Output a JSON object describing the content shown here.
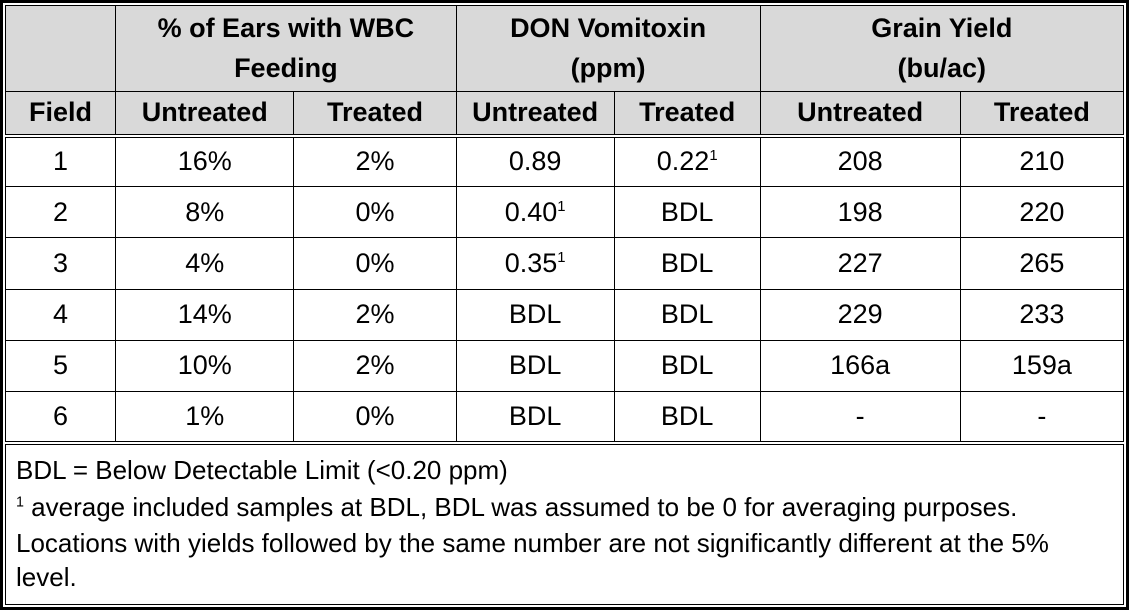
{
  "chart_data": {
    "type": "table",
    "title": "",
    "column_groups": [
      "",
      "% of Ears with WBC Feeding",
      "DON Vomitoxin (ppm)",
      "Grain Yield (bu/ac)"
    ],
    "columns": [
      "Field",
      "Untreated",
      "Treated",
      "Untreated",
      "Treated",
      "Untreated",
      "Treated"
    ],
    "rows": [
      [
        "1",
        "16%",
        "2%",
        "0.89",
        "0.22¹",
        "208",
        "210"
      ],
      [
        "2",
        "8%",
        "0%",
        "0.40¹",
        "BDL",
        "198",
        "220"
      ],
      [
        "3",
        "4%",
        "0%",
        "0.35¹",
        "BDL",
        "227",
        "265"
      ],
      [
        "4",
        "14%",
        "2%",
        "BDL",
        "BDL",
        "229",
        "233"
      ],
      [
        "5",
        "10%",
        "2%",
        "BDL",
        "BDL",
        "166a",
        "159a"
      ],
      [
        "6",
        "1%",
        "0%",
        "BDL",
        "BDL",
        "-",
        "-"
      ]
    ],
    "footnotes": [
      "BDL = Below Detectable Limit (<0.20 ppm)",
      "¹ average included samples at BDL, BDL was assumed to be 0 for averaging purposes.",
      "Locations with yields followed by the same number are not significantly different at the 5% level."
    ]
  },
  "table": {
    "colors": {
      "header_bg": "#d9d9d9",
      "border": "#000000",
      "row_bg": "#ffffff",
      "text": "#000000"
    },
    "group_headers": [
      {
        "name": "field-spacer",
        "lines": [],
        "colspan": 1
      },
      {
        "name": "wbc-feeding",
        "lines": [
          "% of Ears with WBC",
          "Feeding"
        ],
        "colspan": 2
      },
      {
        "name": "don-vomitoxin",
        "lines": [
          "DON Vomitoxin",
          "(ppm)"
        ],
        "colspan": 2
      },
      {
        "name": "grain-yield",
        "lines": [
          "Grain Yield",
          "(bu/ac)"
        ],
        "colspan": 2
      }
    ],
    "columns": [
      {
        "name": "field",
        "label": "Field"
      },
      {
        "name": "wbc-untreated",
        "label": "Untreated"
      },
      {
        "name": "wbc-treated",
        "label": "Treated"
      },
      {
        "name": "don-untreated",
        "label": "Untreated"
      },
      {
        "name": "don-treated",
        "label": "Treated"
      },
      {
        "name": "yield-untreated",
        "label": "Untreated"
      },
      {
        "name": "yield-treated",
        "label": "Treated"
      }
    ],
    "rows": [
      {
        "cells": [
          {
            "text": "1"
          },
          {
            "text": "16%"
          },
          {
            "text": "2%"
          },
          {
            "text": "0.89"
          },
          {
            "text": "0.22",
            "sup": "1"
          },
          {
            "text": "208"
          },
          {
            "text": "210"
          }
        ]
      },
      {
        "cells": [
          {
            "text": "2"
          },
          {
            "text": "8%"
          },
          {
            "text": "0%"
          },
          {
            "text": "0.40",
            "sup": "1"
          },
          {
            "text": "BDL"
          },
          {
            "text": "198"
          },
          {
            "text": "220"
          }
        ]
      },
      {
        "cells": [
          {
            "text": "3"
          },
          {
            "text": "4%"
          },
          {
            "text": "0%"
          },
          {
            "text": "0.35",
            "sup": "1"
          },
          {
            "text": "BDL"
          },
          {
            "text": "227"
          },
          {
            "text": "265"
          }
        ]
      },
      {
        "cells": [
          {
            "text": "4"
          },
          {
            "text": "14%"
          },
          {
            "text": "2%"
          },
          {
            "text": "BDL"
          },
          {
            "text": "BDL"
          },
          {
            "text": "229"
          },
          {
            "text": "233"
          }
        ]
      },
      {
        "cells": [
          {
            "text": "5"
          },
          {
            "text": "10%"
          },
          {
            "text": "2%"
          },
          {
            "text": "BDL"
          },
          {
            "text": "BDL"
          },
          {
            "text": "166a"
          },
          {
            "text": "159a"
          }
        ]
      },
      {
        "cells": [
          {
            "text": "6"
          },
          {
            "text": "1%"
          },
          {
            "text": "0%"
          },
          {
            "text": "BDL"
          },
          {
            "text": "BDL"
          },
          {
            "text": "-"
          },
          {
            "text": "-"
          }
        ]
      }
    ],
    "footnotes": [
      {
        "text": "BDL = Below Detectable Limit (<0.20 ppm)"
      },
      {
        "sup": "1",
        "text": " average included samples at BDL, BDL was assumed to be 0 for averaging purposes."
      },
      {
        "text": "Locations with yields followed by the same number are not significantly different at the 5% level."
      }
    ]
  }
}
